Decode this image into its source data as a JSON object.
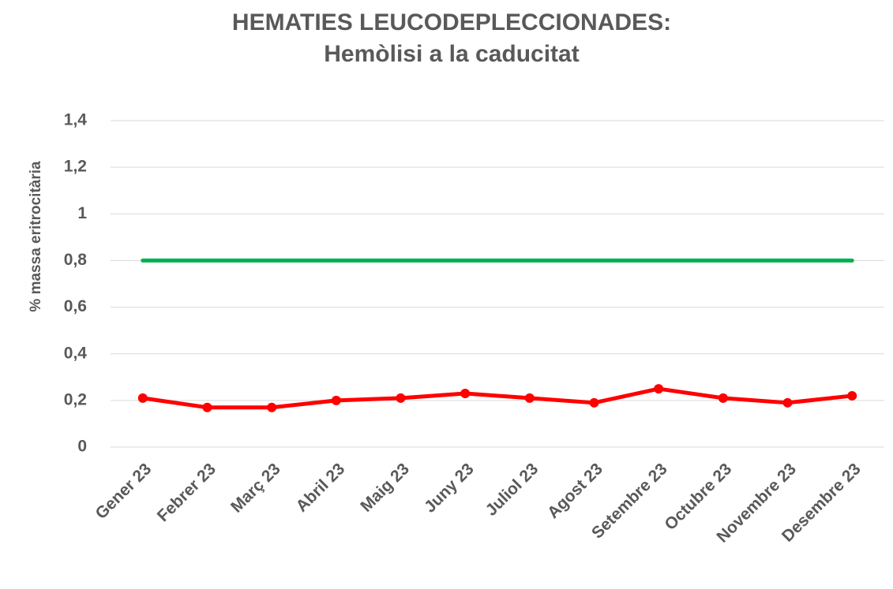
{
  "chart_data": {
    "type": "line",
    "title": "HEMATIES LEUCODEPLECCIONADES:",
    "subtitle": "Hemòlisi a la caducitat",
    "y_label": "% massa eritrocitària",
    "categories": [
      "Gener 23",
      "Febrer 23",
      "Març 23",
      "Abril 23",
      "Maig 23",
      "Juny 23",
      "Juliol 23",
      "Agost 23",
      "Setembre 23",
      "Octubre 23",
      "Novembre 23",
      "Desembre 23"
    ],
    "series": [
      {
        "color": "#ff0000",
        "markers": true,
        "values": [
          0.21,
          0.17,
          0.17,
          0.2,
          0.21,
          0.23,
          0.21,
          0.19,
          0.25,
          0.21,
          0.19,
          0.22
        ]
      },
      {
        "color": "#00b050",
        "markers": false,
        "values": [
          0.8,
          0.8,
          0.8,
          0.8,
          0.8,
          0.8,
          0.8,
          0.8,
          0.8,
          0.8,
          0.8,
          0.8
        ]
      }
    ],
    "ylim": [
      0,
      1.4
    ],
    "yticks": [
      0,
      {
        "value": 0.2,
        "label": "0,2"
      },
      {
        "value": 0.4,
        "label": "0,4"
      },
      {
        "value": 0.6,
        "label": "0,6"
      },
      {
        "value": 0.8,
        "label": "0,8"
      },
      1,
      {
        "value": 1.2,
        "label": "1,2"
      },
      {
        "value": 1.4,
        "label": "1,4"
      }
    ],
    "grid": true
  }
}
